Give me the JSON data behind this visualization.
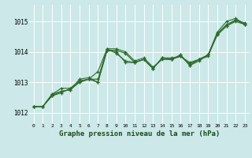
{
  "background_color": "#cce8e8",
  "grid_color": "#ffffff",
  "line_color": "#2d6b2d",
  "xlabel": "Graphe pression niveau de la mer (hPa)",
  "ylabel_ticks": [
    1012,
    1013,
    1014,
    1015
  ],
  "xlim": [
    -0.5,
    23.5
  ],
  "ylim": [
    1011.65,
    1015.55
  ],
  "xticks": [
    0,
    1,
    2,
    3,
    4,
    5,
    6,
    7,
    8,
    9,
    10,
    11,
    12,
    13,
    14,
    15,
    16,
    17,
    18,
    19,
    20,
    21,
    22,
    23
  ],
  "series": [
    [
      1012.2,
      1012.2,
      1012.55,
      1012.7,
      1012.75,
      1013.0,
      1013.1,
      1013.35,
      1014.1,
      1013.95,
      1013.7,
      1013.65,
      1013.75,
      1013.45,
      1013.8,
      1013.75,
      1013.85,
      1013.65,
      1013.75,
      1013.9,
      1014.6,
      1014.85,
      1015.05,
      1014.95
    ],
    [
      1012.2,
      1012.2,
      1012.55,
      1012.65,
      1012.8,
      1013.0,
      1013.1,
      1013.0,
      1014.05,
      1014.0,
      1013.65,
      1013.65,
      1013.75,
      1013.45,
      1013.8,
      1013.75,
      1013.9,
      1013.55,
      1013.75,
      1013.9,
      1014.55,
      1014.85,
      1015.0,
      1014.9
    ],
    [
      1012.2,
      1012.2,
      1012.6,
      1012.8,
      1012.8,
      1013.05,
      1013.1,
      1013.1,
      1014.1,
      1014.1,
      1014.0,
      1013.7,
      1013.8,
      1013.5,
      1013.75,
      1013.75,
      1013.9,
      1013.55,
      1013.7,
      1013.9,
      1014.65,
      1015.0,
      1015.1,
      1014.9
    ],
    [
      1012.2,
      1012.2,
      1012.6,
      1012.7,
      1012.75,
      1013.1,
      1013.15,
      1013.0,
      1014.05,
      1014.05,
      1013.95,
      1013.65,
      1013.75,
      1013.45,
      1013.8,
      1013.8,
      1013.85,
      1013.6,
      1013.75,
      1013.85,
      1014.6,
      1014.9,
      1015.05,
      1014.9
    ]
  ]
}
